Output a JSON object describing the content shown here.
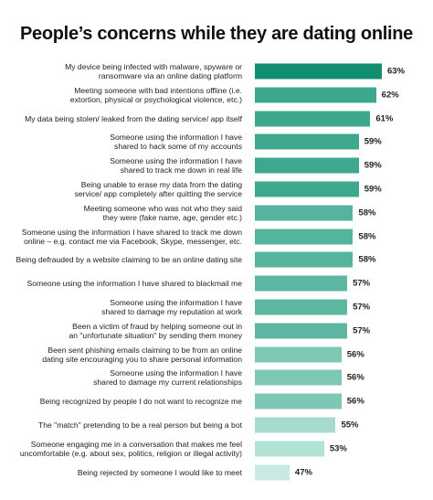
{
  "chart_data": {
    "type": "bar",
    "orientation": "horizontal",
    "title": "People’s concerns while they are dating online",
    "categories": [
      "My device being infected with malware, spyware or\nransomware via an online dating platform",
      "Meeting someone with bad intentions offline (i.e.\nextortion, physical or psychological violence, etc.)",
      "My data being stolen/ leaked from the dating service/ app itself",
      "Someone using the information I have\nshared to hack some of my accounts",
      "Someone using the information I have\nshared to track me down in real life",
      "Being unable to erase my data from the dating\nservice/ app completely after quitting the service",
      "Meeting someone who was not who they said\nthey were (fake name, age, gender etc.)",
      "Someone using the information I have shared to track me down\nonline – e.g. contact me via Facebook, Skype, messenger, etc.",
      "Being defrauded by a website claiming to be an online dating site",
      "Someone using the information I have shared to blackmail me",
      "Someone using the information I have\nshared to damage my reputation at work",
      "Been a victim of fraud by helping someone out in\nan \"unfortunate situation\" by sending them money",
      "Been sent phishing emails claiming to be from an online\ndating site encouraging you to share personal information",
      "Someone using the information I have\nshared to damage my current relationships",
      "Being recognized by people I do not want to recognize me",
      "The \"match\" pretending to be a real person but being a bot",
      "Someone engaging me in a conversation that makes me feel\nuncomfortable (e.g. about sex, politics, religion or illegal activity)",
      "Being rejected by someone I would like to meet"
    ],
    "values": [
      63,
      62,
      61,
      59,
      59,
      59,
      58,
      58,
      58,
      57,
      57,
      57,
      56,
      56,
      56,
      55,
      53,
      47
    ],
    "value_labels": [
      "63%",
      "62%",
      "61%",
      "59%",
      "59%",
      "59%",
      "58%",
      "58%",
      "58%",
      "57%",
      "57%",
      "57%",
      "56%",
      "56%",
      "56%",
      "55%",
      "53%",
      "47%"
    ],
    "colors": [
      "#0f8e70",
      "#3ea88e",
      "#3ea88e",
      "#3ea88e",
      "#3ea88e",
      "#3ea88e",
      "#55b49c",
      "#55b49c",
      "#55b49c",
      "#5db7a0",
      "#5db7a0",
      "#5db7a0",
      "#7ec7b4",
      "#7ec7b4",
      "#7ec7b4",
      "#a6dbcd",
      "#b2e1d5",
      "#c8eae2"
    ],
    "xlim": [
      41,
      63
    ]
  }
}
